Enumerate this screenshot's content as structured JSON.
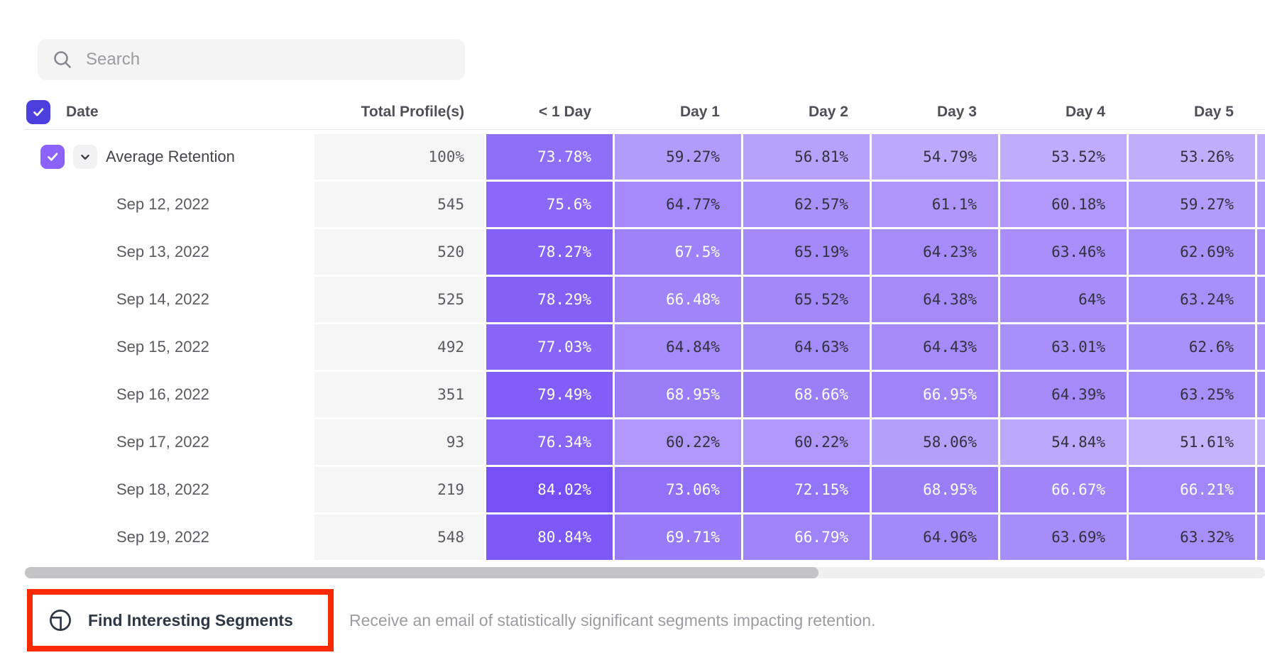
{
  "search": {
    "placeholder": "Search"
  },
  "colors": {
    "header_checkbox": "#4b40dd",
    "row_checkbox": "#8b63fa",
    "annotation_red": "#fa2a00",
    "cell_text_dark": "#32323e",
    "cell_text_light": "#ffffff"
  },
  "heatmap": {
    "scale_min": 51,
    "scale_max": 85,
    "light_rgb": [
      197,
      180,
      252
    ],
    "dark_rgb": [
      115,
      77,
      246
    ],
    "white_text_threshold": 66
  },
  "table": {
    "columns": [
      "Date",
      "Total Profile(s)",
      "< 1 Day",
      "Day 1",
      "Day 2",
      "Day 3",
      "Day 4",
      "Day 5"
    ],
    "rows": [
      {
        "label": "Average Retention",
        "expandable": true,
        "checked": true,
        "total": "100%",
        "values": [
          "73.78%",
          "59.27%",
          "56.81%",
          "54.79%",
          "53.52%",
          "53.26%"
        ]
      },
      {
        "label": "Sep 12, 2022",
        "expandable": false,
        "total": "545",
        "values": [
          "75.6%",
          "64.77%",
          "62.57%",
          "61.1%",
          "60.18%",
          "59.27%"
        ]
      },
      {
        "label": "Sep 13, 2022",
        "expandable": false,
        "total": "520",
        "values": [
          "78.27%",
          "67.5%",
          "65.19%",
          "64.23%",
          "63.46%",
          "62.69%"
        ]
      },
      {
        "label": "Sep 14, 2022",
        "expandable": false,
        "total": "525",
        "values": [
          "78.29%",
          "66.48%",
          "65.52%",
          "64.38%",
          "64%",
          "63.24%"
        ]
      },
      {
        "label": "Sep 15, 2022",
        "expandable": false,
        "total": "492",
        "values": [
          "77.03%",
          "64.84%",
          "64.63%",
          "64.43%",
          "63.01%",
          "62.6%"
        ]
      },
      {
        "label": "Sep 16, 2022",
        "expandable": false,
        "total": "351",
        "values": [
          "79.49%",
          "68.95%",
          "68.66%",
          "66.95%",
          "64.39%",
          "63.25%"
        ]
      },
      {
        "label": "Sep 17, 2022",
        "expandable": false,
        "total": "93",
        "values": [
          "76.34%",
          "60.22%",
          "60.22%",
          "58.06%",
          "54.84%",
          "51.61%"
        ]
      },
      {
        "label": "Sep 18, 2022",
        "expandable": false,
        "total": "219",
        "values": [
          "84.02%",
          "73.06%",
          "72.15%",
          "68.95%",
          "66.67%",
          "66.21%"
        ]
      },
      {
        "label": "Sep 19, 2022",
        "expandable": false,
        "total": "548",
        "values": [
          "80.84%",
          "69.71%",
          "66.79%",
          "64.96%",
          "63.69%",
          "63.32%"
        ]
      }
    ]
  },
  "footer": {
    "button_label": "Find Interesting Segments",
    "description": "Receive an email of statistically significant segments impacting retention."
  }
}
